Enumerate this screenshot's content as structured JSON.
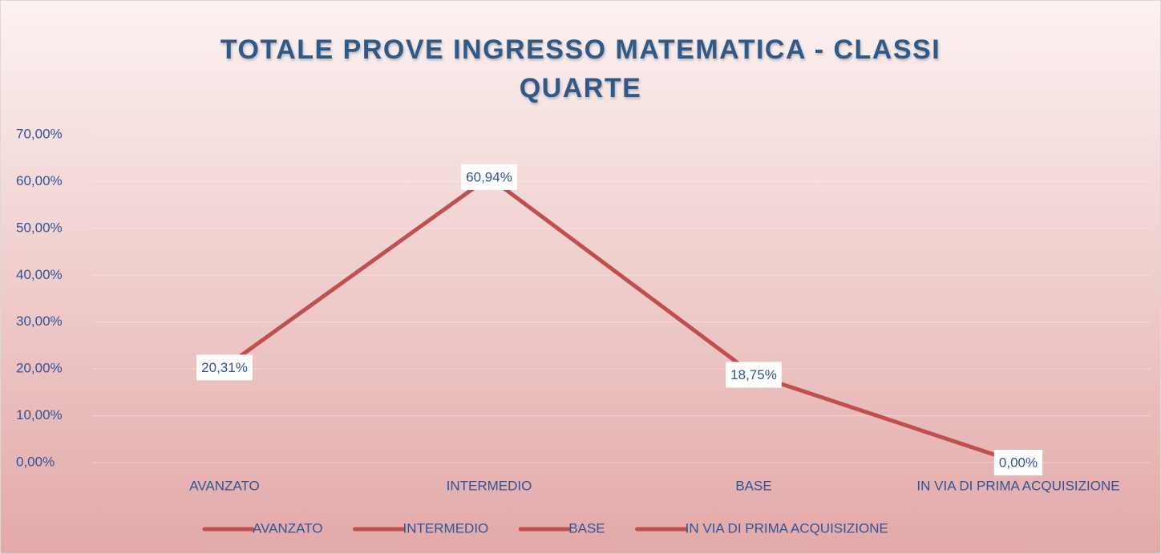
{
  "chart_data": {
    "type": "line",
    "title": "TOTALE PROVE INGRESSO MATEMATICA - CLASSI QUARTE",
    "categories": [
      "AVANZATO",
      "INTERMEDIO",
      "BASE",
      "IN VIA DI PRIMA ACQUISIZIONE"
    ],
    "values": [
      20.31,
      60.94,
      18.75,
      0
    ],
    "value_labels": [
      "20,31%",
      "60,94%",
      "18,75%",
      "0,00%"
    ],
    "color": "#c0504d",
    "ylim": [
      0,
      70
    ],
    "yticks": [
      {
        "value": 0,
        "label": "0,00%"
      },
      {
        "value": 10,
        "label": "10,00%"
      },
      {
        "value": 20,
        "label": "20,00%"
      },
      {
        "value": 30,
        "label": "30,00%"
      },
      {
        "value": 40,
        "label": "40,00%"
      },
      {
        "value": 50,
        "label": "50,00%"
      },
      {
        "value": 60,
        "label": "60,00%"
      },
      {
        "value": 70,
        "label": "70,00%"
      }
    ],
    "grid": true,
    "legend": "bottom"
  }
}
